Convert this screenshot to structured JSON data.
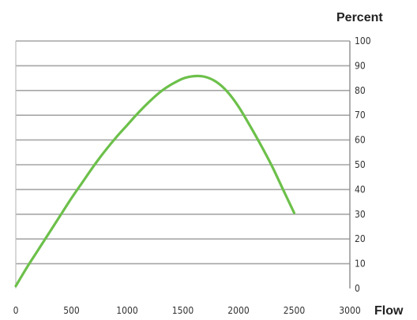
{
  "chart_data": {
    "type": "line",
    "title": "",
    "xlabel": "Flow",
    "ylabel": "Percent",
    "xlim": [
      0,
      3000
    ],
    "ylim": [
      0,
      100
    ],
    "x_ticks": [
      "0",
      "500",
      "1000",
      "1500",
      "2000",
      "2500",
      "3000"
    ],
    "y_ticks": [
      "0",
      "10",
      "20",
      "30",
      "40",
      "50",
      "60",
      "70",
      "80",
      "90",
      "100"
    ],
    "grid": "horizontal",
    "line_color": "#6cc04a",
    "grid_color": "#a6a6a6",
    "series": [
      {
        "name": "",
        "x": [
          0,
          100,
          200,
          300,
          400,
          500,
          600,
          700,
          800,
          900,
          1000,
          1100,
          1200,
          1300,
          1400,
          1500,
          1600,
          1700,
          1800,
          1900,
          2000,
          2100,
          2200,
          2300,
          2400,
          2500
        ],
        "y": [
          1,
          8.5,
          15.5,
          22.5,
          29.5,
          36.5,
          43,
          49.5,
          55.5,
          61,
          66,
          71,
          75.5,
          79.5,
          82.5,
          84.8,
          85.8,
          85.5,
          83.5,
          79.5,
          73.5,
          66,
          58,
          49.5,
          40,
          30.5
        ]
      }
    ]
  }
}
